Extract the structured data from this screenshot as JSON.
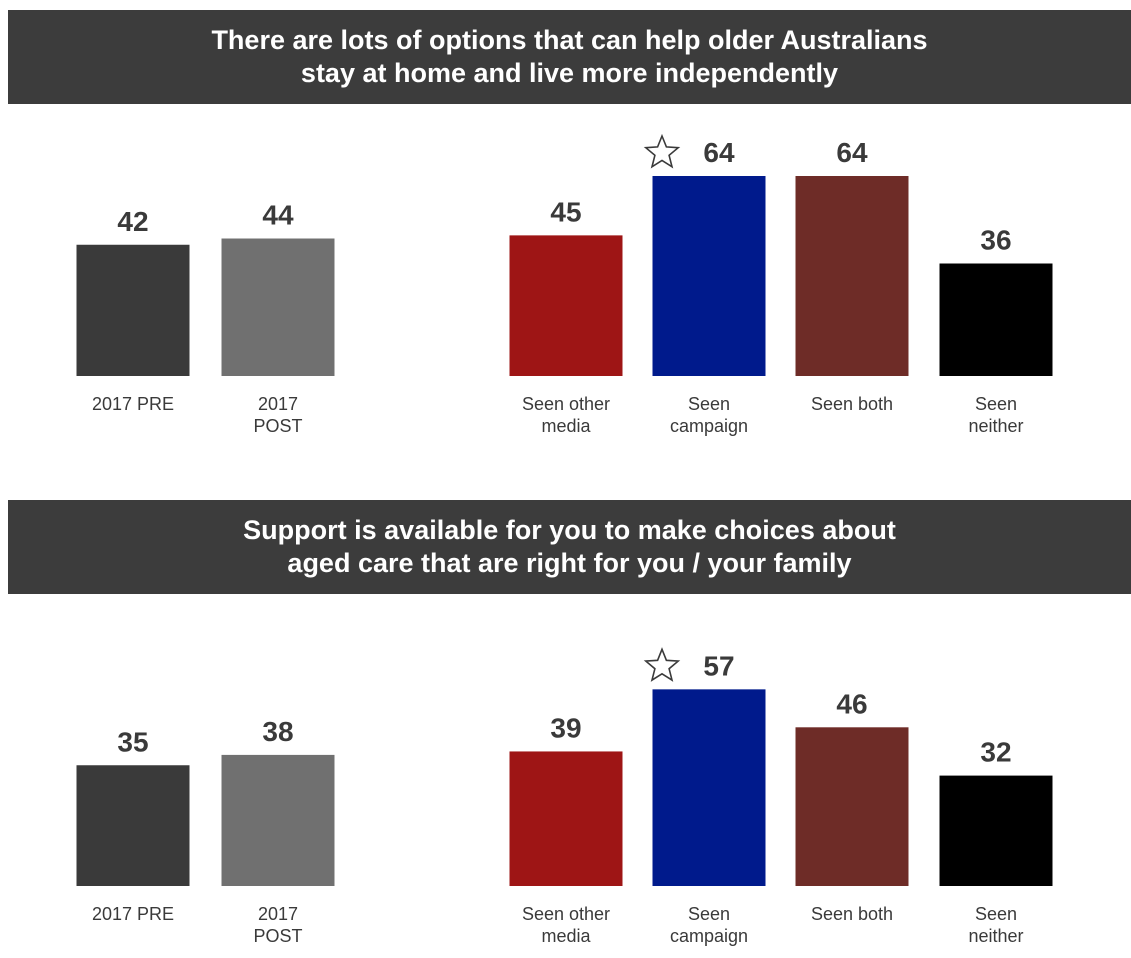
{
  "chart_data": [
    {
      "type": "bar",
      "title_lines": [
        "There are lots of options that can help older Australians",
        "stay at home and live more independently"
      ],
      "groups": [
        {
          "categories": [
            [
              "2017 PRE"
            ],
            [
              "2017",
              "POST"
            ]
          ],
          "values": [
            42,
            44
          ],
          "colors": [
            "#3a3a3a",
            "#707070"
          ],
          "starred": [
            false,
            false
          ]
        },
        {
          "categories": [
            [
              "Seen other",
              "media"
            ],
            [
              "Seen",
              "campaign"
            ],
            [
              "Seen both"
            ],
            [
              "Seen",
              "neither"
            ]
          ],
          "values": [
            45,
            64,
            64,
            36
          ],
          "colors": [
            "#9e1515",
            "#001a8c",
            "#6e2c27",
            "#000000"
          ],
          "starred": [
            false,
            true,
            false,
            false
          ]
        }
      ]
    },
    {
      "type": "bar",
      "title_lines": [
        "Support is available for you to make choices about",
        "aged care that are right for you / your family"
      ],
      "groups": [
        {
          "categories": [
            [
              "2017 PRE"
            ],
            [
              "2017",
              "POST"
            ]
          ],
          "values": [
            35,
            38
          ],
          "colors": [
            "#3a3a3a",
            "#707070"
          ],
          "starred": [
            false,
            false
          ]
        },
        {
          "categories": [
            [
              "Seen other",
              "media"
            ],
            [
              "Seen",
              "campaign"
            ],
            [
              "Seen both"
            ],
            [
              "Seen",
              "neither"
            ]
          ],
          "values": [
            39,
            57,
            46,
            32
          ],
          "colors": [
            "#9e1515",
            "#001a8c",
            "#6e2c27",
            "#000000"
          ],
          "starred": [
            false,
            true,
            false,
            false
          ]
        }
      ]
    }
  ]
}
